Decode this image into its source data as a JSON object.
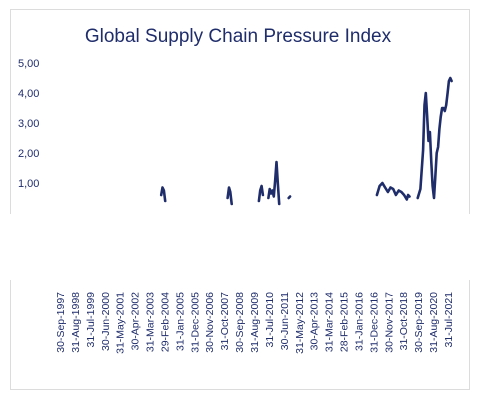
{
  "chart_data": {
    "type": "line",
    "title": "Global Supply Chain Pressure Index",
    "xlabel": "",
    "ylabel": "",
    "ylim": [
      0,
      5
    ],
    "y_ticks": [
      "5,00",
      "4,00",
      "3,00",
      "2,00",
      "1,00"
    ],
    "y_tick_values": [
      5,
      4,
      3,
      2,
      1
    ],
    "x_ticks": [
      "30-Sep-1997",
      "31-Aug-1998",
      "31-Jul-1999",
      "30-Jun-2000",
      "31-May-2001",
      "30-Apr-2002",
      "31-Mar-2003",
      "29-Feb-2004",
      "31-Jan-2005",
      "31-Dec-2005",
      "30-Nov-2006",
      "31-Oct-2007",
      "30-Sep-2008",
      "31-Aug-2009",
      "31-Jul-2010",
      "30-Jun-2011",
      "31-May-2012",
      "30-Apr-2013",
      "31-Mar-2014",
      "28-Feb-2015",
      "31-Jan-2016",
      "31-Dec-2016",
      "30-Nov-2017",
      "31-Oct-2018",
      "30-Sep-2019",
      "31-Aug-2020",
      "31-Jul-2021"
    ],
    "x_range": [
      "1997-09-30",
      "2021-12-31"
    ],
    "series": [
      {
        "color": "#1f2d6b",
        "points": [
          [
            "2004-01-31",
            0.6
          ],
          [
            "2004-02-29",
            0.85
          ],
          [
            "2004-03-31",
            0.75
          ],
          [
            "2004-04-30",
            0.4
          ],
          [
            "2008-02-29",
            0.5
          ],
          [
            "2008-03-31",
            0.85
          ],
          [
            "2008-04-30",
            0.7
          ],
          [
            "2008-05-31",
            0.3
          ],
          [
            "2010-01-31",
            0.4
          ],
          [
            "2010-02-28",
            0.75
          ],
          [
            "2010-03-31",
            0.9
          ],
          [
            "2010-04-30",
            0.6
          ],
          [
            "2010-08-31",
            0.5
          ],
          [
            "2010-09-30",
            0.8
          ],
          [
            "2010-10-31",
            0.65
          ],
          [
            "2010-11-30",
            0.75
          ],
          [
            "2010-12-31",
            0.55
          ],
          [
            "2011-01-31",
            1.1
          ],
          [
            "2011-02-28",
            1.7
          ],
          [
            "2011-03-31",
            1.0
          ],
          [
            "2011-04-30",
            0.3
          ],
          [
            "2011-11-30",
            0.5
          ],
          [
            "2011-12-31",
            0.55
          ],
          [
            "2017-04-30",
            0.6
          ],
          [
            "2017-06-30",
            0.9
          ],
          [
            "2017-08-31",
            1.0
          ],
          [
            "2017-10-31",
            0.85
          ],
          [
            "2017-12-31",
            0.7
          ],
          [
            "2018-02-28",
            0.85
          ],
          [
            "2018-04-30",
            0.8
          ],
          [
            "2018-06-30",
            0.6
          ],
          [
            "2018-08-31",
            0.75
          ],
          [
            "2018-10-31",
            0.7
          ],
          [
            "2018-12-31",
            0.6
          ],
          [
            "2019-02-28",
            0.45
          ],
          [
            "2019-03-31",
            0.6
          ],
          [
            "2019-04-30",
            0.55
          ],
          [
            "2019-10-31",
            0.5
          ],
          [
            "2019-12-31",
            0.8
          ],
          [
            "2020-02-29",
            2.1
          ],
          [
            "2020-03-31",
            3.6
          ],
          [
            "2020-04-30",
            4.0
          ],
          [
            "2020-05-31",
            3.2
          ],
          [
            "2020-06-30",
            2.4
          ],
          [
            "2020-07-31",
            2.7
          ],
          [
            "2020-08-31",
            1.7
          ],
          [
            "2020-09-30",
            0.9
          ],
          [
            "2020-10-31",
            0.5
          ],
          [
            "2020-11-30",
            1.2
          ],
          [
            "2020-12-31",
            2.0
          ],
          [
            "2021-01-31",
            2.2
          ],
          [
            "2021-02-28",
            2.8
          ],
          [
            "2021-03-31",
            3.2
          ],
          [
            "2021-04-30",
            3.5
          ],
          [
            "2021-05-31",
            3.5
          ],
          [
            "2021-06-30",
            3.4
          ],
          [
            "2021-07-31",
            3.6
          ],
          [
            "2021-08-31",
            4.0
          ],
          [
            "2021-09-30",
            4.4
          ],
          [
            "2021-10-31",
            4.5
          ],
          [
            "2021-11-30",
            4.4
          ]
        ]
      }
    ]
  }
}
